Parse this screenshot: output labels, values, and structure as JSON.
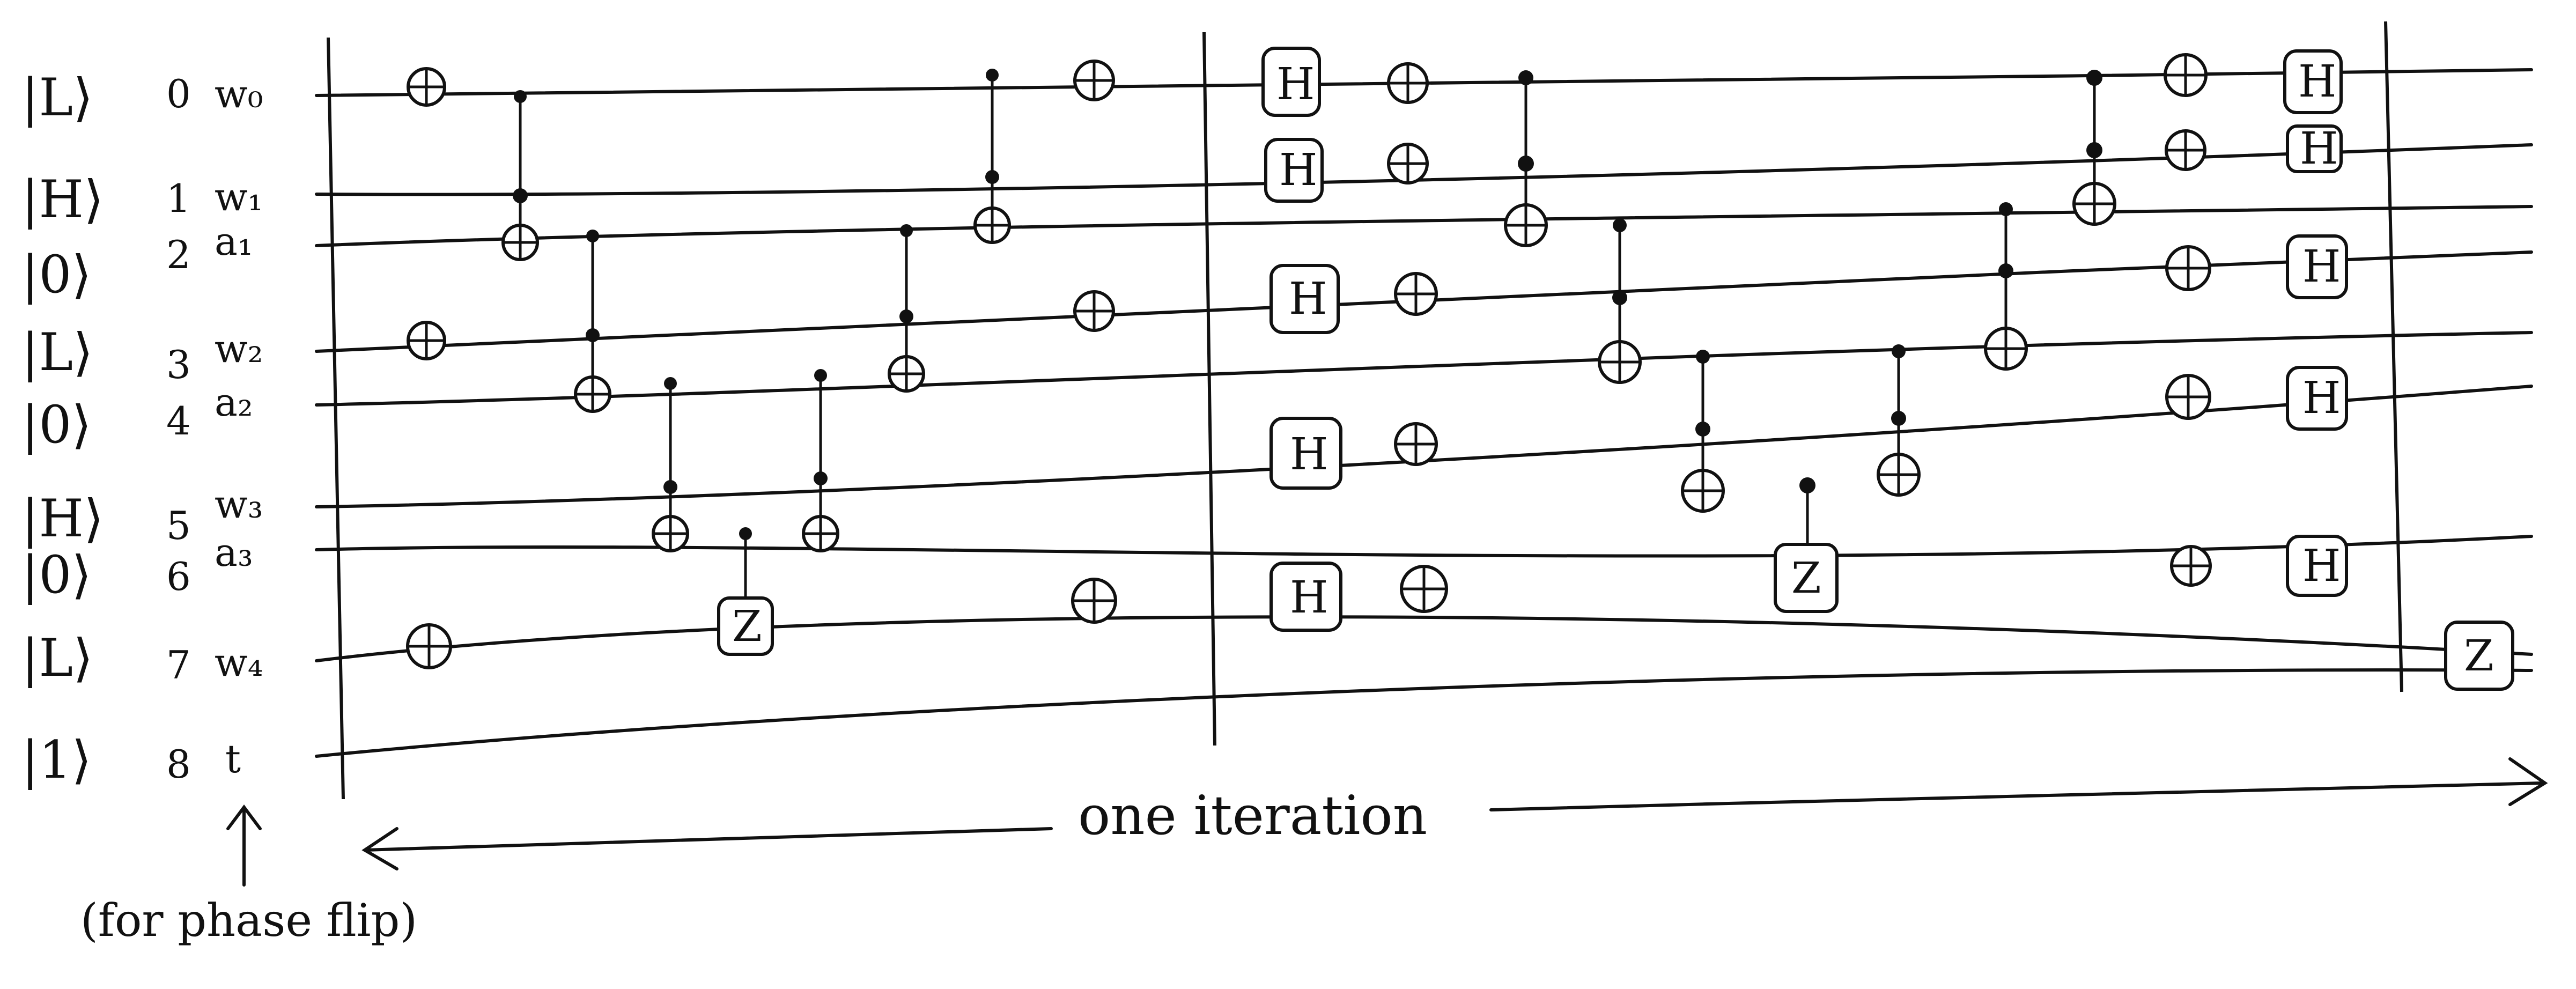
{
  "labels": {
    "states": [
      "|L⟩",
      "|H⟩",
      "|0⟩",
      "|L⟩",
      "|0⟩",
      "|H⟩",
      "|0⟩",
      "|L⟩",
      "|1⟩"
    ],
    "indices": [
      "0",
      "1",
      "2",
      "3",
      "4",
      "5",
      "6",
      "7",
      "8"
    ],
    "names": [
      "w₀",
      "w₁",
      "a₁",
      "w₂",
      "a₂",
      "w₃",
      "a₃",
      "w₄",
      "t"
    ]
  },
  "annotations": {
    "iteration": "one iteration",
    "phase_note": "(for phase flip)"
  },
  "gate_symbols": {
    "H": "H",
    "Z": "Z"
  }
}
